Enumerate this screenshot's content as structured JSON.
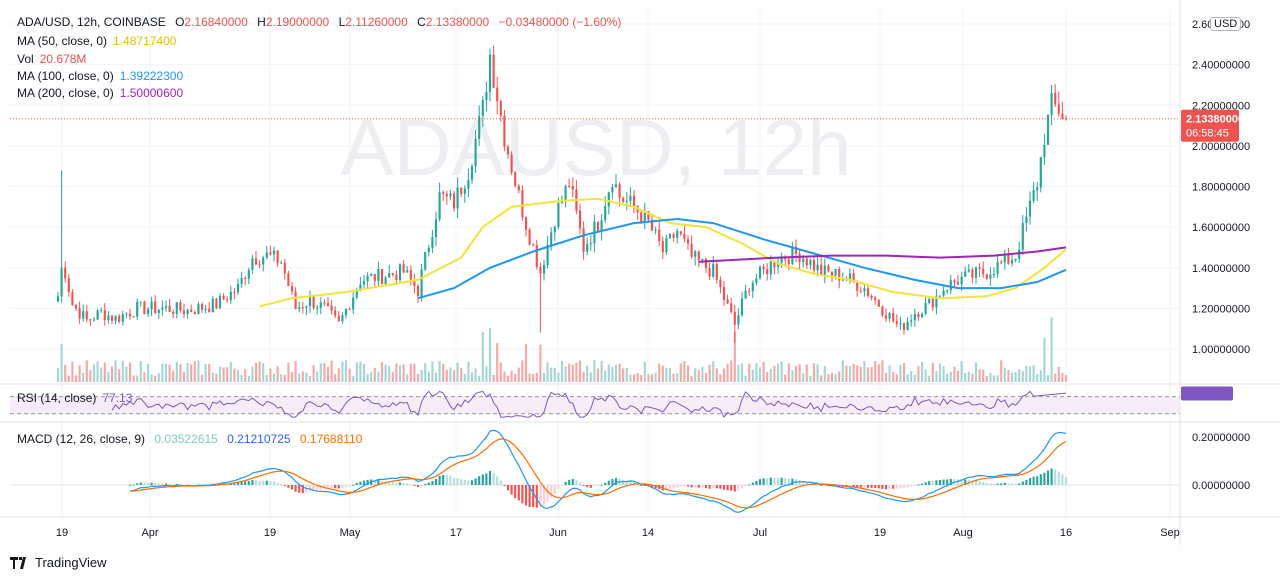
{
  "header": {
    "symbol": "ADA/USD, 12h, COINBASE",
    "ohlc": [
      {
        "k": "O",
        "v": "2.16840000"
      },
      {
        "k": "H",
        "v": "2.19000000"
      },
      {
        "k": "L",
        "v": "2.11260000"
      },
      {
        "k": "C",
        "v": "2.13380000"
      }
    ],
    "change": "−0.03480000 (−1.60%)"
  },
  "indicators": [
    {
      "name": "MA (50, close, 0)",
      "value": "1.48717400",
      "color": "#f5d90a"
    },
    {
      "name": "Vol",
      "value": "20.678M",
      "color": "#ef5350"
    },
    {
      "name": "MA (100, close, 0)",
      "value": "1.39222300",
      "color": "#2196f3"
    },
    {
      "name": "MA (200, close, 0)",
      "value": "1.50000600",
      "color": "#9c27b0"
    }
  ],
  "rsi": {
    "name": "RSI (14, close)",
    "value": "77.13"
  },
  "macd": {
    "name": "MACD (12, 26, close, 9)",
    "hist": "0.03522615",
    "macd": "0.21210725",
    "signal": "0.17688110"
  },
  "watermark": "ADAUSD, 12h",
  "price_label": {
    "price": "2.13380000",
    "countdown": "06:58:45"
  },
  "currency_badge": "USD",
  "branding": "TradingView",
  "chart_data": {
    "type": "candlestick",
    "x_ticks": [
      "19",
      "Apr",
      "19",
      "May",
      "17",
      "Jun",
      "14",
      "Jul",
      "19",
      "Aug",
      "16",
      "Sep"
    ],
    "y_ticks": [
      "2.60000000",
      "2.40000000",
      "2.20000000",
      "2.00000000",
      "1.80000000",
      "1.60000000",
      "1.40000000",
      "1.20000000",
      "1.00000000"
    ],
    "ylim": [
      0.85,
      2.65
    ],
    "current_price": 2.1338,
    "price_anchors": [
      [
        0,
        1.26
      ],
      [
        1,
        1.88
      ],
      [
        2,
        1.38
      ],
      [
        4,
        1.22
      ],
      [
        8,
        1.14
      ],
      [
        12,
        1.18
      ],
      [
        16,
        1.15
      ],
      [
        22,
        1.2
      ],
      [
        30,
        1.2
      ],
      [
        36,
        1.19
      ],
      [
        44,
        1.22
      ],
      [
        50,
        1.3
      ],
      [
        54,
        1.45
      ],
      [
        58,
        1.46
      ],
      [
        62,
        1.43
      ],
      [
        66,
        1.2
      ],
      [
        70,
        1.24
      ],
      [
        74,
        1.2
      ],
      [
        78,
        1.12
      ],
      [
        84,
        1.34
      ],
      [
        90,
        1.36
      ],
      [
        96,
        1.38
      ],
      [
        100,
        1.29
      ],
      [
        106,
        1.75
      ],
      [
        110,
        1.72
      ],
      [
        114,
        1.88
      ],
      [
        118,
        2.18
      ],
      [
        120,
        2.45
      ],
      [
        122,
        2.25
      ],
      [
        124,
        2.05
      ],
      [
        128,
        1.75
      ],
      [
        130,
        1.62
      ],
      [
        134,
        1.38
      ],
      [
        138,
        1.65
      ],
      [
        142,
        1.82
      ],
      [
        146,
        1.5
      ],
      [
        150,
        1.62
      ],
      [
        154,
        1.85
      ],
      [
        156,
        1.75
      ],
      [
        160,
        1.7
      ],
      [
        164,
        1.62
      ],
      [
        168,
        1.48
      ],
      [
        172,
        1.58
      ],
      [
        176,
        1.45
      ],
      [
        182,
        1.38
      ],
      [
        188,
        1.12
      ],
      [
        192,
        1.32
      ],
      [
        196,
        1.38
      ],
      [
        200,
        1.45
      ],
      [
        206,
        1.47
      ],
      [
        212,
        1.38
      ],
      [
        218,
        1.36
      ],
      [
        224,
        1.3
      ],
      [
        230,
        1.18
      ],
      [
        234,
        1.1
      ],
      [
        238,
        1.18
      ],
      [
        242,
        1.22
      ],
      [
        246,
        1.3
      ],
      [
        250,
        1.34
      ],
      [
        254,
        1.36
      ],
      [
        258,
        1.38
      ],
      [
        262,
        1.42
      ],
      [
        266,
        1.46
      ],
      [
        270,
        1.7
      ],
      [
        272,
        1.82
      ],
      [
        274,
        2.05
      ],
      [
        276,
        2.2
      ],
      [
        278,
        2.18
      ],
      [
        280,
        2.133
      ]
    ],
    "ma50_points": [
      [
        56,
        1.21
      ],
      [
        65,
        1.25
      ],
      [
        80,
        1.28
      ],
      [
        100,
        1.34
      ],
      [
        112,
        1.45
      ],
      [
        118,
        1.6
      ],
      [
        126,
        1.7
      ],
      [
        140,
        1.73
      ],
      [
        150,
        1.74
      ],
      [
        160,
        1.7
      ],
      [
        170,
        1.62
      ],
      [
        180,
        1.6
      ],
      [
        190,
        1.52
      ],
      [
        200,
        1.42
      ],
      [
        210,
        1.37
      ],
      [
        220,
        1.34
      ],
      [
        232,
        1.28
      ],
      [
        245,
        1.25
      ],
      [
        258,
        1.26
      ],
      [
        266,
        1.3
      ],
      [
        274,
        1.4
      ],
      [
        280,
        1.49
      ]
    ],
    "ma100_points": [
      [
        100,
        1.25
      ],
      [
        110,
        1.3
      ],
      [
        120,
        1.4
      ],
      [
        132,
        1.48
      ],
      [
        146,
        1.56
      ],
      [
        160,
        1.62
      ],
      [
        172,
        1.64
      ],
      [
        182,
        1.62
      ],
      [
        196,
        1.54
      ],
      [
        210,
        1.47
      ],
      [
        224,
        1.4
      ],
      [
        238,
        1.34
      ],
      [
        250,
        1.3
      ],
      [
        262,
        1.3
      ],
      [
        272,
        1.33
      ],
      [
        280,
        1.39
      ]
    ],
    "ma200_points": [
      [
        178,
        1.43
      ],
      [
        200,
        1.45
      ],
      [
        215,
        1.46
      ],
      [
        230,
        1.46
      ],
      [
        245,
        1.45
      ],
      [
        260,
        1.46
      ],
      [
        272,
        1.48
      ],
      [
        280,
        1.5
      ]
    ],
    "rsi_range": [
      30,
      70
    ],
    "rsi_latest": 77.13,
    "macd_ylim": [
      -0.08,
      0.24
    ],
    "macd_latest": {
      "macd": 0.2121,
      "signal": 0.1769,
      "hist": 0.0352
    }
  }
}
